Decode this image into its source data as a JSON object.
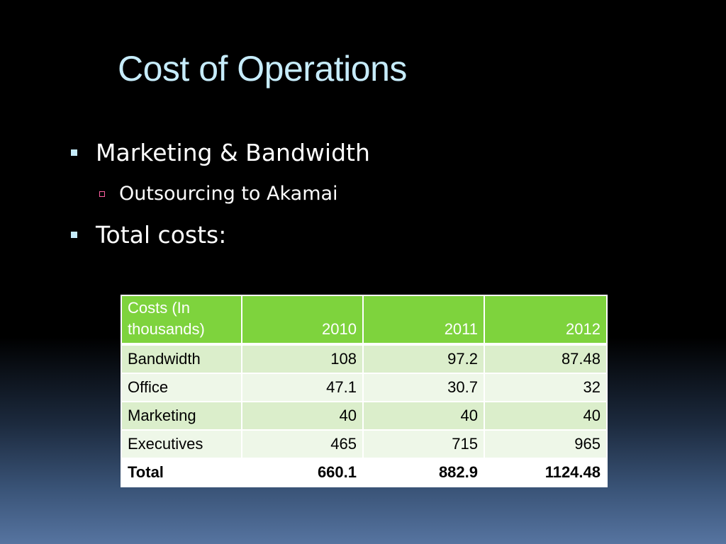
{
  "slide": {
    "title": "Cost of Operations",
    "bullets": [
      {
        "level": 1,
        "text": "Marketing & Bandwidth"
      },
      {
        "level": 2,
        "text": "Outsourcing to Akamai"
      },
      {
        "level": 1,
        "text": "Total costs:"
      }
    ],
    "colors": {
      "title": "#c6ecfb",
      "header_bg": "#7ed33d",
      "row_dark": "#dbeecb",
      "row_light": "#eef7e8",
      "sub_bullet": "#ff5fa0"
    },
    "icons": {
      "level1_marker": "filled-square-bullet-icon",
      "level2_marker": "hollow-square-bullet-icon"
    }
  },
  "table": {
    "headers": [
      "Costs (In thousands)",
      "2010",
      "2011",
      "2012"
    ],
    "rows": [
      [
        "Bandwidth",
        "108",
        "97.2",
        "87.48"
      ],
      [
        "Office",
        "47.1",
        "30.7",
        "32"
      ],
      [
        "Marketing",
        "40",
        "40",
        "40"
      ],
      [
        "Executives",
        "465",
        "715",
        "965"
      ],
      [
        "Total",
        "660.1",
        "882.9",
        "1124.48"
      ]
    ]
  }
}
